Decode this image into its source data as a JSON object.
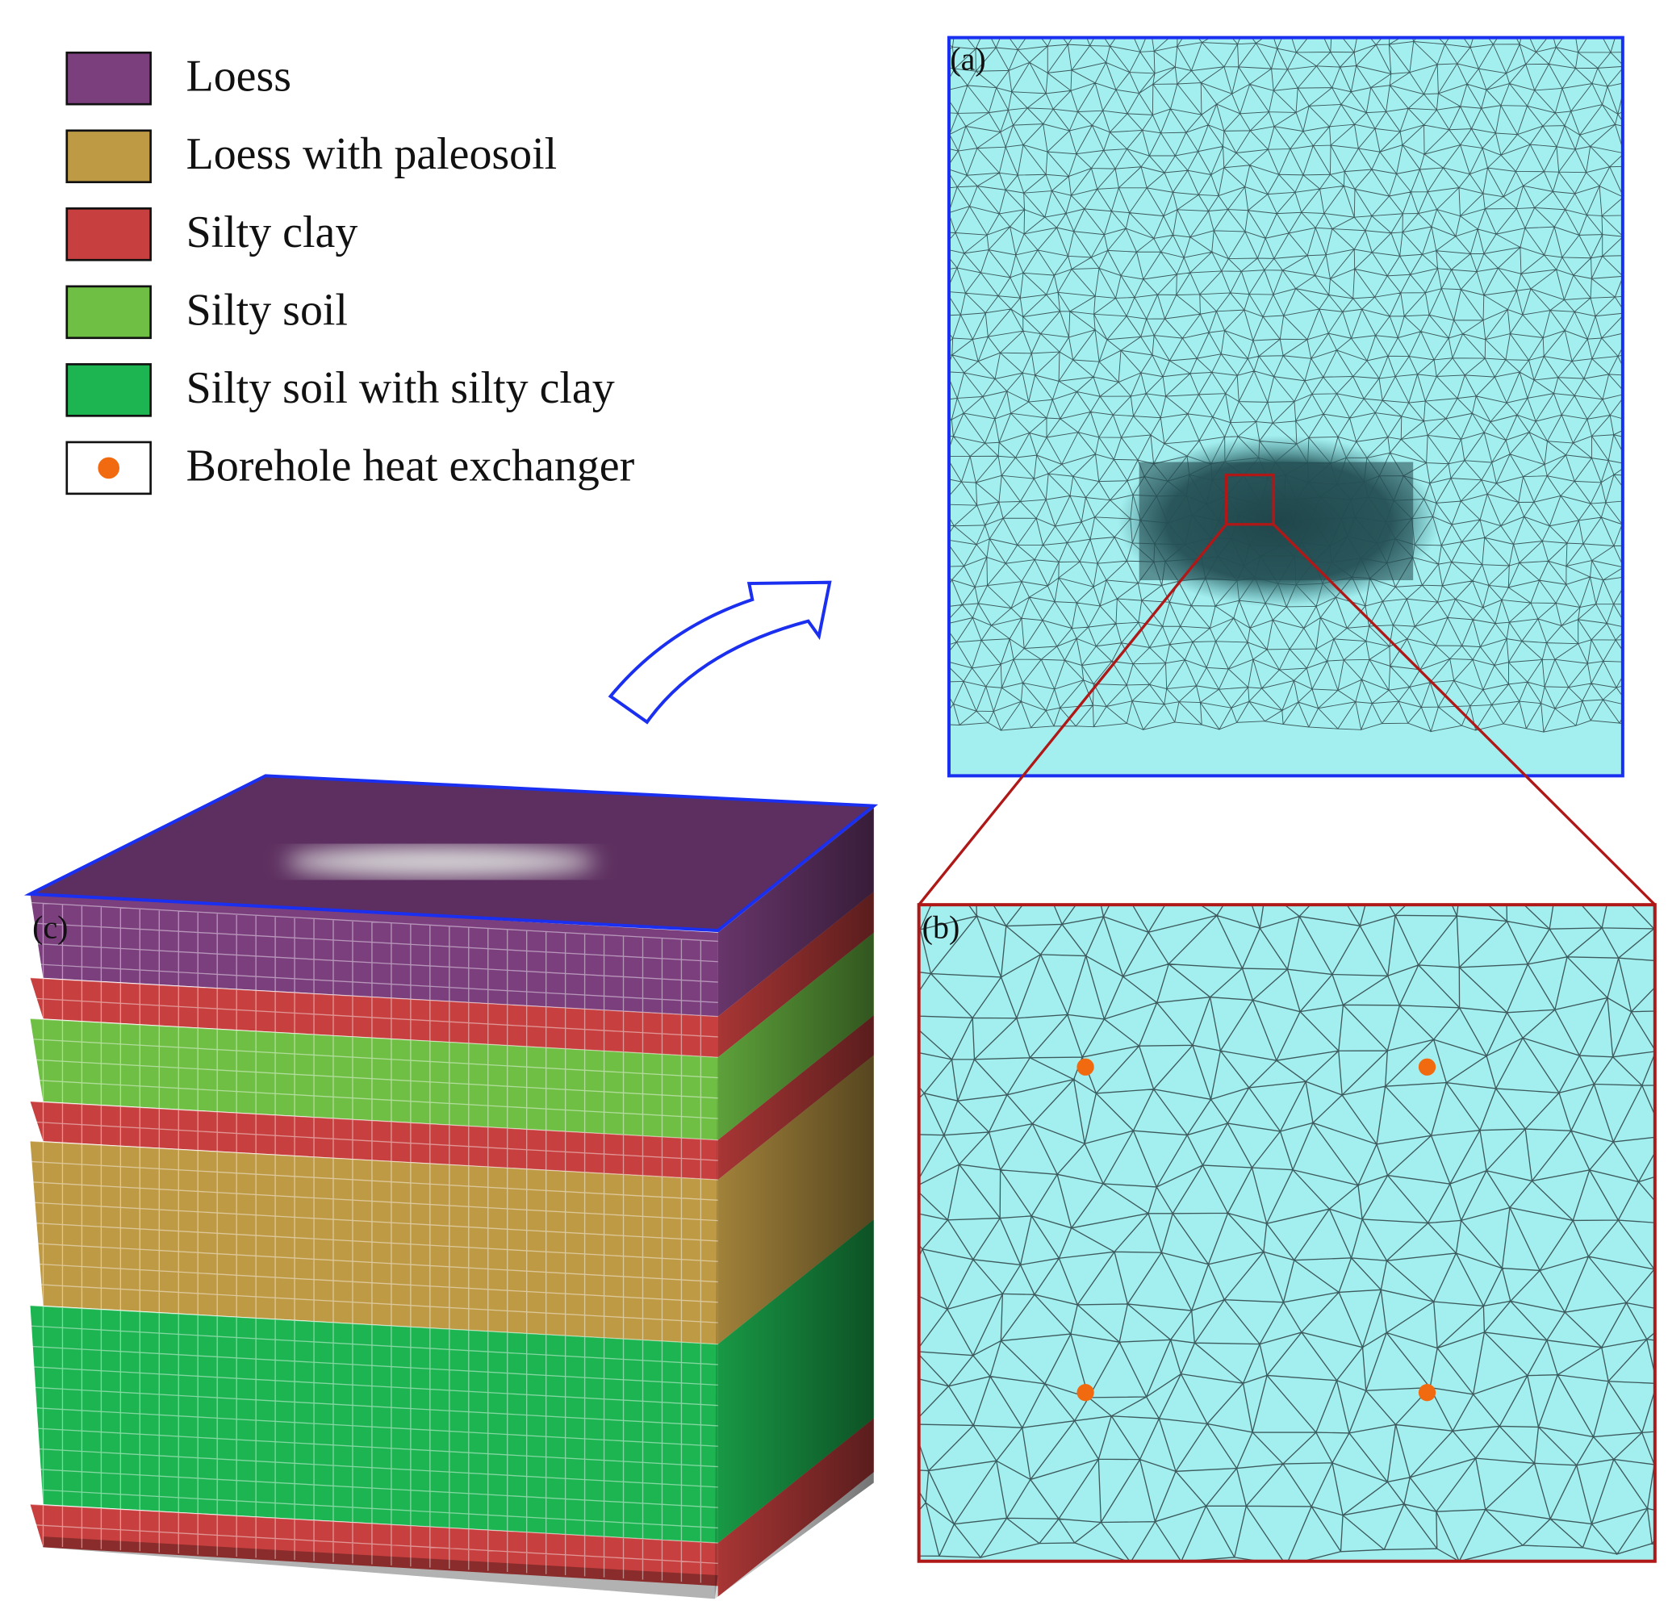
{
  "legend": {
    "items": [
      {
        "label": "Loess",
        "color": "#7b3f7e"
      },
      {
        "label": "Loess with paleosoil",
        "color": "#bf9a45"
      },
      {
        "label": "Silty clay",
        "color": "#c7403f"
      },
      {
        "label": "Silty soil",
        "color": "#6fbf45"
      },
      {
        "label": "Silty soil with silty clay",
        "color": "#1db552"
      },
      {
        "label": "Borehole heat exchanger",
        "color": "#f26a0f"
      }
    ]
  },
  "panels": {
    "a": "(a)",
    "b": "(b)",
    "c": "(c)"
  }
}
